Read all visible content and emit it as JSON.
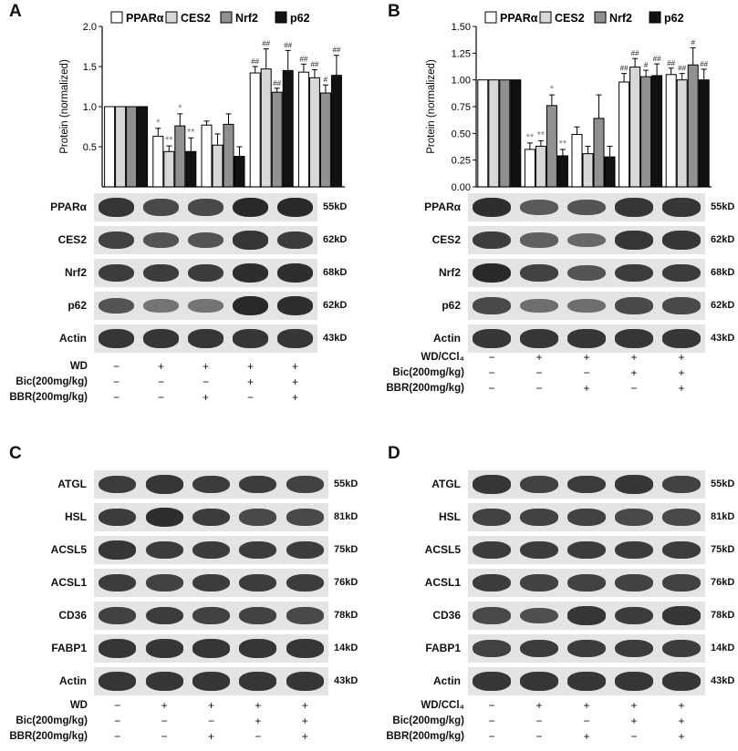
{
  "figure": {
    "panels": [
      "A",
      "B",
      "C",
      "D"
    ],
    "legend": [
      "PPARα",
      "CES2",
      "Nrf2",
      "p62"
    ],
    "legend_colors": [
      "#ffffff",
      "#d8d8d8",
      "#909090",
      "#111111"
    ]
  },
  "chart_data": [
    {
      "panel": "A",
      "type": "bar",
      "ylabel": "Protein (normalized)",
      "ylim": [
        0,
        2.0
      ],
      "yticks": [
        "0.5",
        "1.0",
        "1.5",
        "2.0"
      ],
      "groups": 5,
      "series": [
        {
          "name": "PPARα",
          "values": [
            1.0,
            0.63,
            0.77,
            1.42,
            1.43
          ],
          "errors": [
            0,
            0.1,
            0.05,
            0.08,
            0.1
          ]
        },
        {
          "name": "CES2",
          "values": [
            1.0,
            0.44,
            0.52,
            1.47,
            1.36
          ],
          "errors": [
            0,
            0.07,
            0.14,
            0.25,
            0.1
          ]
        },
        {
          "name": "Nrf2",
          "values": [
            1.0,
            0.76,
            0.78,
            1.18,
            1.17
          ],
          "errors": [
            0,
            0.15,
            0.13,
            0.05,
            0.1
          ]
        },
        {
          "name": "p62",
          "values": [
            1.0,
            0.44,
            0.38,
            1.45,
            1.39
          ],
          "errors": [
            0,
            0.17,
            0.12,
            0.25,
            0.25
          ]
        }
      ],
      "annotations": [
        {
          "group": 1,
          "series": 0,
          "text": "*"
        },
        {
          "group": 1,
          "series": 1,
          "text": "**"
        },
        {
          "group": 1,
          "series": 2,
          "text": "*"
        },
        {
          "group": 1,
          "series": 3,
          "text": "**"
        },
        {
          "group": 3,
          "series": 0,
          "text": "##"
        },
        {
          "group": 3,
          "series": 1,
          "text": "##"
        },
        {
          "group": 3,
          "series": 2,
          "text": "##"
        },
        {
          "group": 3,
          "series": 3,
          "text": "##"
        },
        {
          "group": 4,
          "series": 0,
          "text": "##"
        },
        {
          "group": 4,
          "series": 1,
          "text": "##"
        },
        {
          "group": 4,
          "series": 2,
          "text": "#"
        },
        {
          "group": 4,
          "series": 3,
          "text": "##"
        }
      ]
    },
    {
      "panel": "B",
      "type": "bar",
      "ylabel": "Protein (normalized)",
      "ylim": [
        0,
        1.5
      ],
      "yticks": [
        "0.00",
        "0.25",
        "0.50",
        "0.75",
        "1.00",
        "1.25",
        "1.50"
      ],
      "groups": 5,
      "series": [
        {
          "name": "PPARα",
          "values": [
            1.0,
            0.35,
            0.49,
            0.98,
            1.05
          ],
          "errors": [
            0,
            0.06,
            0.07,
            0.08,
            0.06
          ]
        },
        {
          "name": "CES2",
          "values": [
            1.0,
            0.38,
            0.31,
            1.12,
            1.0
          ],
          "errors": [
            0,
            0.05,
            0.07,
            0.08,
            0.06
          ]
        },
        {
          "name": "Nrf2",
          "values": [
            1.0,
            0.76,
            0.64,
            1.03,
            1.14
          ],
          "errors": [
            0,
            0.1,
            0.22,
            0.06,
            0.16
          ]
        },
        {
          "name": "p62",
          "values": [
            1.0,
            0.29,
            0.28,
            1.04,
            1.0
          ],
          "errors": [
            0,
            0.06,
            0.1,
            0.11,
            0.1
          ]
        }
      ],
      "annotations": [
        {
          "group": 1,
          "series": 0,
          "text": "**"
        },
        {
          "group": 1,
          "series": 1,
          "text": "**"
        },
        {
          "group": 1,
          "series": 2,
          "text": "*"
        },
        {
          "group": 1,
          "series": 3,
          "text": "**"
        },
        {
          "group": 3,
          "series": 0,
          "text": "##"
        },
        {
          "group": 3,
          "series": 1,
          "text": "##"
        },
        {
          "group": 3,
          "series": 2,
          "text": "#"
        },
        {
          "group": 3,
          "series": 3,
          "text": "##"
        },
        {
          "group": 4,
          "series": 0,
          "text": "##"
        },
        {
          "group": 4,
          "series": 1,
          "text": "##"
        },
        {
          "group": 4,
          "series": 2,
          "text": "#"
        },
        {
          "group": 4,
          "series": 3,
          "text": "##"
        }
      ]
    }
  ],
  "blots": {
    "A": {
      "rows": [
        {
          "name": "PPARα",
          "kd": "55kD"
        },
        {
          "name": "CES2",
          "kd": "62kD"
        },
        {
          "name": "Nrf2",
          "kd": "68kD"
        },
        {
          "name": "p62",
          "kd": "62kD"
        },
        {
          "name": "Actin",
          "kd": "43kD"
        }
      ],
      "intensity": [
        [
          0.85,
          0.7,
          0.7,
          0.95,
          0.95
        ],
        [
          0.75,
          0.6,
          0.6,
          0.85,
          0.8
        ],
        [
          0.8,
          0.8,
          0.8,
          0.9,
          0.9
        ],
        [
          0.6,
          0.35,
          0.35,
          0.95,
          0.9
        ],
        [
          0.85,
          0.85,
          0.85,
          0.85,
          0.85
        ]
      ],
      "conditions": [
        {
          "label": "WD",
          "marks": [
            "−",
            "+",
            "+",
            "+",
            "+"
          ]
        },
        {
          "label": "Bic(200mg/kg)",
          "marks": [
            "−",
            "−",
            "−",
            "+",
            "+"
          ]
        },
        {
          "label": "BBR(200mg/kg)",
          "marks": [
            "−",
            "−",
            "+",
            "−",
            "+"
          ]
        }
      ]
    },
    "B": {
      "rows": [
        {
          "name": "PPARα",
          "kd": "55kD"
        },
        {
          "name": "CES2",
          "kd": "62kD"
        },
        {
          "name": "Nrf2",
          "kd": "68kD"
        },
        {
          "name": "p62",
          "kd": "62kD"
        },
        {
          "name": "Actin",
          "kd": "43kD"
        }
      ],
      "intensity": [
        [
          0.9,
          0.55,
          0.6,
          0.85,
          0.85
        ],
        [
          0.8,
          0.5,
          0.45,
          0.85,
          0.85
        ],
        [
          0.95,
          0.75,
          0.6,
          0.8,
          0.8
        ],
        [
          0.7,
          0.4,
          0.4,
          0.7,
          0.7
        ],
        [
          0.85,
          0.85,
          0.85,
          0.85,
          0.85
        ]
      ],
      "conditions": [
        {
          "label": "WD/CCl₄",
          "marks": [
            "−",
            "+",
            "+",
            "+",
            "+"
          ]
        },
        {
          "label": "Bic(200mg/kg)",
          "marks": [
            "−",
            "−",
            "−",
            "+",
            "+"
          ]
        },
        {
          "label": "BBR(200mg/kg)",
          "marks": [
            "−",
            "−",
            "+",
            "−",
            "+"
          ]
        }
      ]
    },
    "C": {
      "rows": [
        {
          "name": "ATGL",
          "kd": "55kD"
        },
        {
          "name": "HSL",
          "kd": "81kD"
        },
        {
          "name": "ACSL5",
          "kd": "75kD"
        },
        {
          "name": "ACSL1",
          "kd": "76kD"
        },
        {
          "name": "CD36",
          "kd": "78kD"
        },
        {
          "name": "FABP1",
          "kd": "14kD"
        },
        {
          "name": "Actin",
          "kd": "43kD"
        }
      ],
      "intensity": [
        [
          0.8,
          0.85,
          0.8,
          0.8,
          0.75
        ],
        [
          0.8,
          0.9,
          0.8,
          0.7,
          0.7
        ],
        [
          0.85,
          0.8,
          0.8,
          0.8,
          0.8
        ],
        [
          0.8,
          0.75,
          0.8,
          0.8,
          0.8
        ],
        [
          0.75,
          0.8,
          0.75,
          0.75,
          0.7
        ],
        [
          0.85,
          0.85,
          0.85,
          0.85,
          0.85
        ],
        [
          0.85,
          0.85,
          0.85,
          0.85,
          0.85
        ]
      ],
      "conditions": [
        {
          "label": "WD",
          "marks": [
            "−",
            "+",
            "+",
            "+",
            "+"
          ]
        },
        {
          "label": "Bic(200mg/kg)",
          "marks": [
            "−",
            "−",
            "−",
            "+",
            "+"
          ]
        },
        {
          "label": "BBR(200mg/kg)",
          "marks": [
            "−",
            "−",
            "+",
            "−",
            "+"
          ]
        }
      ]
    },
    "D": {
      "rows": [
        {
          "name": "ATGL",
          "kd": "55kD"
        },
        {
          "name": "HSL",
          "kd": "81kD"
        },
        {
          "name": "ACSL5",
          "kd": "75kD"
        },
        {
          "name": "ACSL1",
          "kd": "76kD"
        },
        {
          "name": "CD36",
          "kd": "78kD"
        },
        {
          "name": "FABP1",
          "kd": "14kD"
        },
        {
          "name": "Actin",
          "kd": "43kD"
        }
      ],
      "intensity": [
        [
          0.85,
          0.75,
          0.8,
          0.85,
          0.75
        ],
        [
          0.75,
          0.75,
          0.75,
          0.7,
          0.7
        ],
        [
          0.8,
          0.8,
          0.8,
          0.8,
          0.8
        ],
        [
          0.8,
          0.75,
          0.75,
          0.75,
          0.75
        ],
        [
          0.7,
          0.65,
          0.85,
          0.8,
          0.85
        ],
        [
          0.75,
          0.8,
          0.8,
          0.8,
          0.8
        ],
        [
          0.85,
          0.85,
          0.85,
          0.85,
          0.85
        ]
      ],
      "conditions": [
        {
          "label": "WD/CCl₄",
          "marks": [
            "−",
            "+",
            "+",
            "+",
            "+"
          ]
        },
        {
          "label": "Bic(200mg/kg)",
          "marks": [
            "−",
            "−",
            "−",
            "+",
            "+"
          ]
        },
        {
          "label": "BBR(200mg/kg)",
          "marks": [
            "−",
            "−",
            "+",
            "−",
            "+"
          ]
        }
      ]
    }
  }
}
